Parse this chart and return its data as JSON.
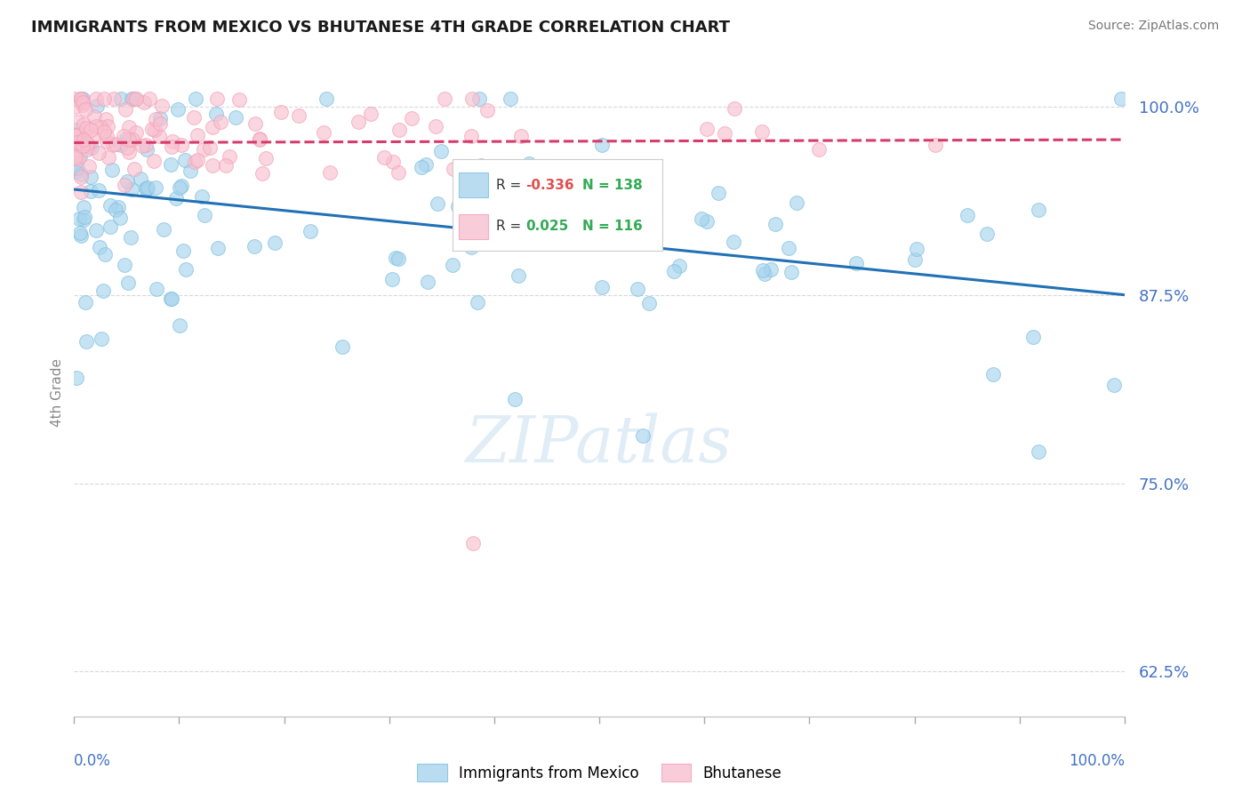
{
  "title": "IMMIGRANTS FROM MEXICO VS BHUTANESE 4TH GRADE CORRELATION CHART",
  "source": "Source: ZipAtlas.com",
  "ylabel": "4th Grade",
  "yticks": [
    0.625,
    0.75,
    0.875,
    1.0
  ],
  "ytick_labels": [
    "62.5%",
    "75.0%",
    "87.5%",
    "100.0%"
  ],
  "legend_blue_r": "-0.336",
  "legend_blue_n": "138",
  "legend_pink_r": "0.025",
  "legend_pink_n": "116",
  "legend_blue_label": "Immigrants from Mexico",
  "legend_pink_label": "Bhutanese",
  "blue_color": "#7fbfdf",
  "pink_color": "#f4a0b5",
  "blue_face": "#a8d4ee",
  "pink_face": "#f8c0d0",
  "trendline_blue_color": "#2171b5",
  "trendline_pink_color": "#d63b6a",
  "r_neg_color": "#e05050",
  "r_pos_color": "#33aa55",
  "n_color": "#33aa55",
  "background_color": "#ffffff",
  "xlim": [
    0.0,
    1.0
  ],
  "ylim": [
    0.595,
    1.025
  ],
  "blue_trend_start_y": 0.945,
  "blue_trend_end_y": 0.875,
  "pink_trend_start_y": 0.976,
  "pink_trend_end_y": 0.978,
  "seed": 99,
  "watermark_text": "ZIPatlas",
  "watermark_color": "#c8dff0",
  "watermark_alpha": 0.55,
  "axis_label_color": "#4472c4",
  "grid_color": "#d0d0d0"
}
